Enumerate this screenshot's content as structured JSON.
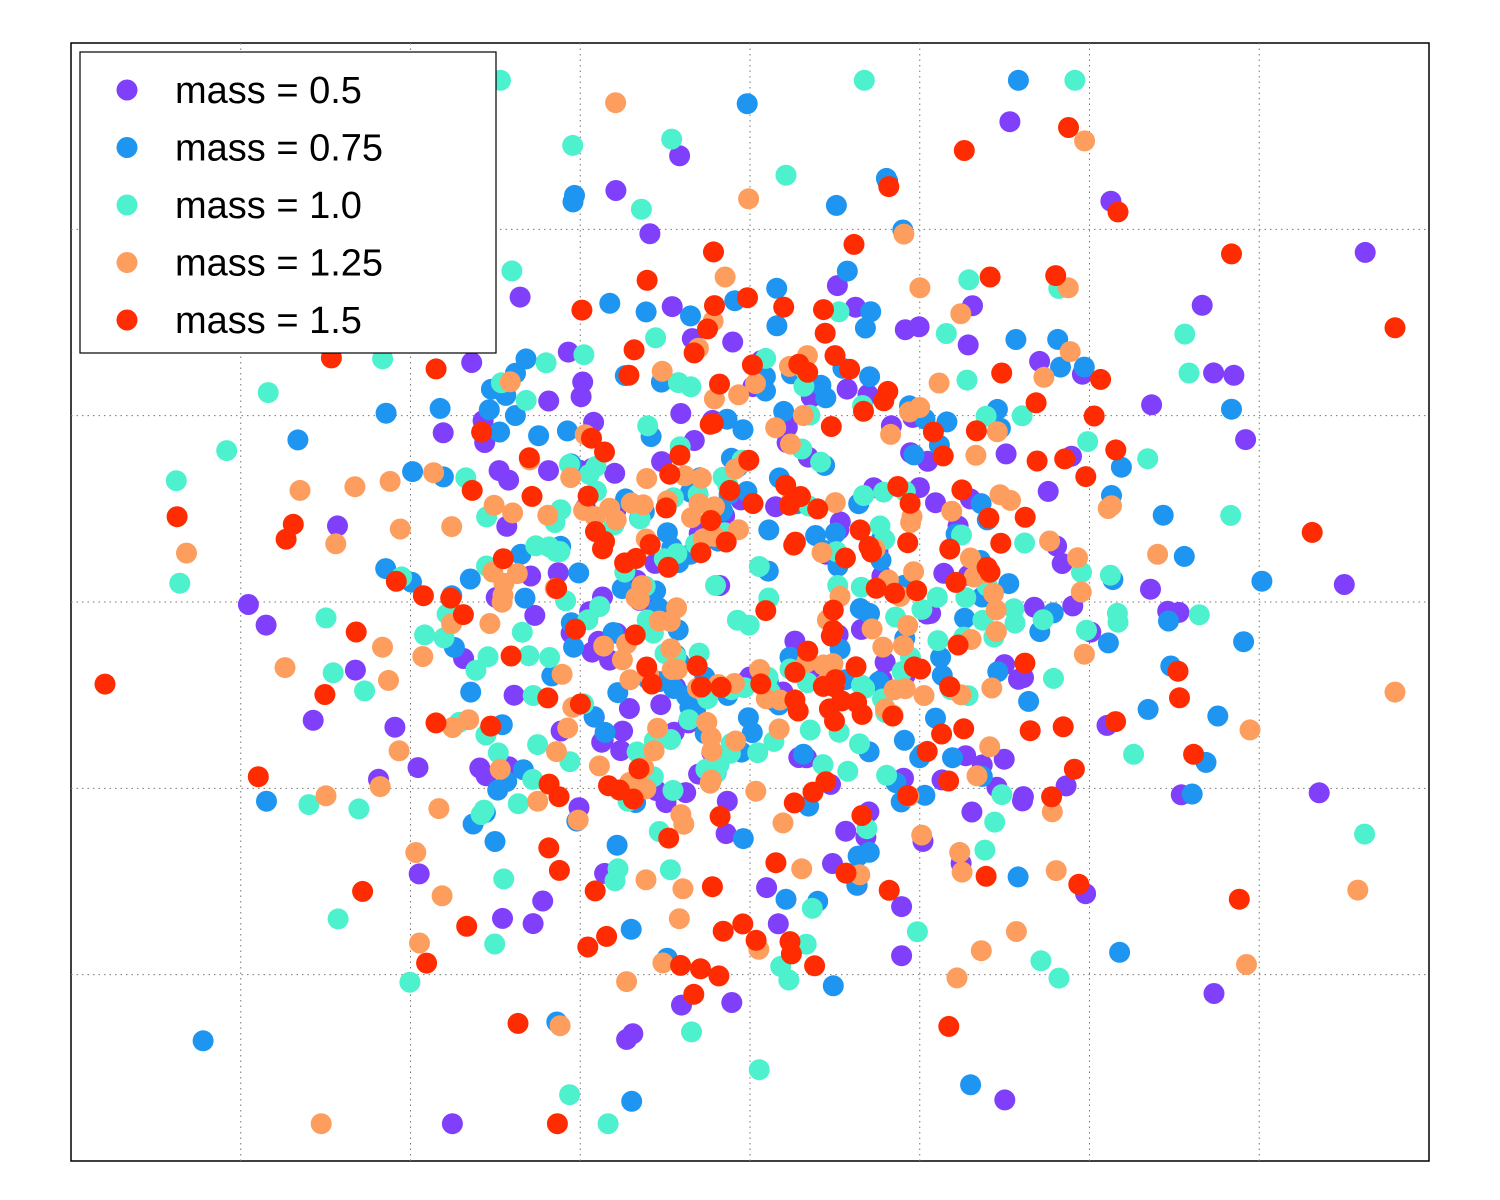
{
  "chart_data": {
    "type": "scatter",
    "title": "",
    "xlabel": "",
    "ylabel": "",
    "xlim": [
      -4,
      4
    ],
    "ylim": [
      -3,
      3
    ],
    "grid": true,
    "ticks_labeled": false,
    "legend": {
      "placement": "top-left"
    },
    "series": [
      {
        "name": "mass = 0.5",
        "color": "#7f3ffb",
        "n": 200,
        "seed": 11
      },
      {
        "name": "mass = 0.75",
        "color": "#1e95f0",
        "n": 200,
        "seed": 23
      },
      {
        "name": "mass = 1.0",
        "color": "#4ef1cd",
        "n": 200,
        "seed": 37
      },
      {
        "name": "mass = 1.25",
        "color": "#fd9e5f",
        "n": 200,
        "seed": 41
      },
      {
        "name": "mass = 1.5",
        "color": "#fe2c00",
        "n": 200,
        "seed": 53
      }
    ]
  }
}
